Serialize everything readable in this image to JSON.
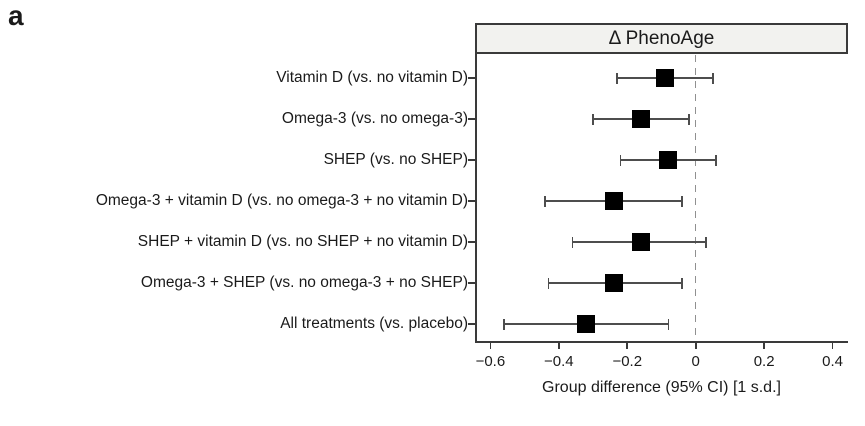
{
  "panel_label": "a",
  "chart_data": {
    "type": "forest",
    "title": "Δ PhenoAge",
    "xlabel": "Group difference (95% CI) [1 s.d.]",
    "xlim": [
      -0.645,
      0.445
    ],
    "zero_line": 0,
    "grid": false,
    "x_ticks": [
      -0.6,
      -0.4,
      -0.2,
      0,
      0.2,
      0.4
    ],
    "x_tick_labels": [
      "−0.6",
      "−0.4",
      "−0.2",
      "0",
      "0.2",
      "0.4"
    ],
    "rows": [
      {
        "label": "Vitamin D (vs. no vitamin D)",
        "estimate": -0.09,
        "ci_low": -0.23,
        "ci_high": 0.05
      },
      {
        "label": "Omega-3 (vs. no omega-3)",
        "estimate": -0.16,
        "ci_low": -0.3,
        "ci_high": -0.02
      },
      {
        "label": "SHEP (vs. no SHEP)",
        "estimate": -0.08,
        "ci_low": -0.22,
        "ci_high": 0.06
      },
      {
        "label": "Omega-3 + vitamin D (vs. no omega-3 + no vitamin D)",
        "estimate": -0.24,
        "ci_low": -0.44,
        "ci_high": -0.04
      },
      {
        "label": "SHEP + vitamin D (vs. no SHEP + no vitamin D)",
        "estimate": -0.16,
        "ci_low": -0.36,
        "ci_high": 0.03
      },
      {
        "label": "Omega-3 + SHEP (vs. no omega-3 + no SHEP)",
        "estimate": -0.24,
        "ci_low": -0.43,
        "ci_high": -0.04
      },
      {
        "label": "All treatments (vs. placebo)",
        "estimate": -0.32,
        "ci_low": -0.56,
        "ci_high": -0.08
      }
    ],
    "colors": {
      "marker": "#000000",
      "error_bar": "#4d4d4d",
      "axis": "#3a3a3a",
      "zero_line": "#909090",
      "header_fill": "#f2f2ef",
      "header_border": "#3a3a3a",
      "text": "#1a1a1a"
    }
  }
}
